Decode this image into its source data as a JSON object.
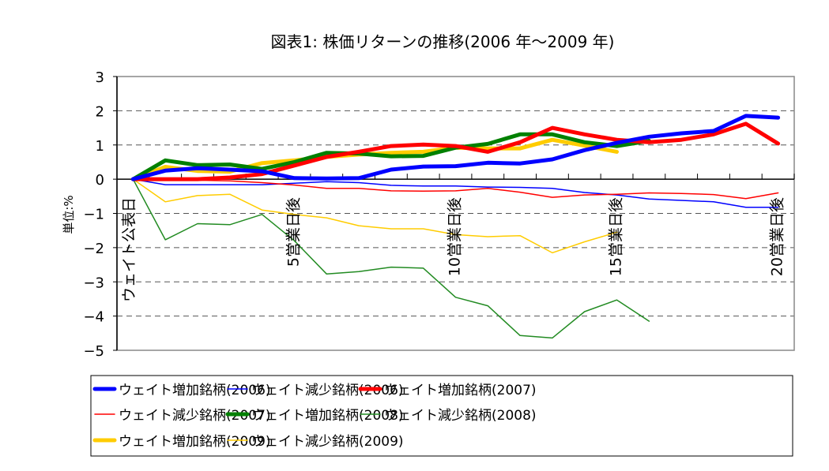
{
  "chart_data": {
    "type": "line",
    "title": "図表1:  株価リターンの推移(2006 年～2009 年)",
    "ylabel": "単位:%",
    "xlabel": "",
    "ylim": [
      -5,
      3
    ],
    "yticks": [
      3,
      2,
      1,
      0,
      -1,
      -2,
      -3,
      -4,
      -5
    ],
    "grid": "horizontal dashed",
    "legend_position": "bottom",
    "x": [
      0,
      1,
      2,
      3,
      4,
      5,
      6,
      7,
      8,
      9,
      10,
      11,
      12,
      13,
      14,
      15,
      16,
      17,
      18,
      19,
      20
    ],
    "x_tick_labels": {
      "0": "ウェイト公表日",
      "5": "5営業日後",
      "10": "10営業日後",
      "15": "15営業日後",
      "20": "20営業日後"
    },
    "series": [
      {
        "name": "ウェイト増加銘柄(2006)",
        "color": "#0000ff",
        "weight": "thick",
        "values": [
          0,
          0.25,
          0.32,
          0.28,
          0.23,
          0.03,
          0.02,
          0.03,
          0.28,
          0.37,
          0.38,
          0.48,
          0.46,
          0.58,
          0.85,
          1.06,
          1.24,
          1.34,
          1.41,
          1.85,
          1.8
        ]
      },
      {
        "name": "ウェイト減少銘柄(2006)",
        "color": "#0000ff",
        "weight": "thin",
        "values": [
          0,
          -0.16,
          -0.16,
          -0.16,
          -0.16,
          -0.12,
          -0.07,
          -0.1,
          -0.18,
          -0.2,
          -0.2,
          -0.23,
          -0.24,
          -0.27,
          -0.39,
          -0.46,
          -0.58,
          -0.62,
          -0.66,
          -0.82,
          -0.82
        ]
      },
      {
        "name": "ウェイト増加銘柄(2007)",
        "color": "#ff0000",
        "weight": "thick",
        "values": [
          0,
          0,
          0,
          0.05,
          0.15,
          0.4,
          0.65,
          0.8,
          0.97,
          1.01,
          0.97,
          0.8,
          1.08,
          1.5,
          1.31,
          1.15,
          1.08,
          1.15,
          1.31,
          1.62,
          1.04
        ]
      },
      {
        "name": "ウェイト減少銘柄(2007)",
        "color": "#ff0000",
        "weight": "thin",
        "values": [
          0,
          -0.02,
          -0.03,
          -0.05,
          -0.1,
          -0.17,
          -0.27,
          -0.27,
          -0.34,
          -0.35,
          -0.34,
          -0.27,
          -0.38,
          -0.53,
          -0.46,
          -0.44,
          -0.4,
          -0.42,
          -0.45,
          -0.57,
          -0.4
        ]
      },
      {
        "name": "ウェイト増加銘柄(2008)",
        "color": "#008000",
        "weight": "thick",
        "values": [
          0,
          0.55,
          0.41,
          0.43,
          0.3,
          0.5,
          0.77,
          0.75,
          0.67,
          0.68,
          0.92,
          1.03,
          1.31,
          1.31,
          1.08,
          0.97,
          1.12,
          null,
          null,
          null,
          null
        ]
      },
      {
        "name": "ウェイト減少銘柄(2008)",
        "color": "#228b22",
        "weight": "thin",
        "values": [
          0,
          -1.77,
          -1.3,
          -1.33,
          -1.03,
          -1.8,
          -2.77,
          -2.7,
          -2.57,
          -2.6,
          -3.45,
          -3.7,
          -4.57,
          -4.64,
          -3.87,
          -3.53,
          -4.15,
          null,
          null,
          null,
          null
        ]
      },
      {
        "name": "ウェイト増加銘柄(2009)",
        "color": "#ffcc00",
        "weight": "thick",
        "values": [
          0,
          0.36,
          0.24,
          0.22,
          0.47,
          0.55,
          0.65,
          0.72,
          0.77,
          0.8,
          0.92,
          0.9,
          0.9,
          1.15,
          0.98,
          0.8,
          null,
          null,
          null,
          null,
          null
        ]
      },
      {
        "name": "ウェイト減少銘柄(2009)",
        "color": "#ffcc00",
        "weight": "thin",
        "values": [
          0,
          -0.66,
          -0.48,
          -0.44,
          -0.9,
          -1.03,
          -1.13,
          -1.36,
          -1.45,
          -1.45,
          -1.62,
          -1.68,
          -1.65,
          -2.15,
          -1.83,
          -1.55,
          null,
          null,
          null,
          null,
          null
        ]
      }
    ]
  }
}
